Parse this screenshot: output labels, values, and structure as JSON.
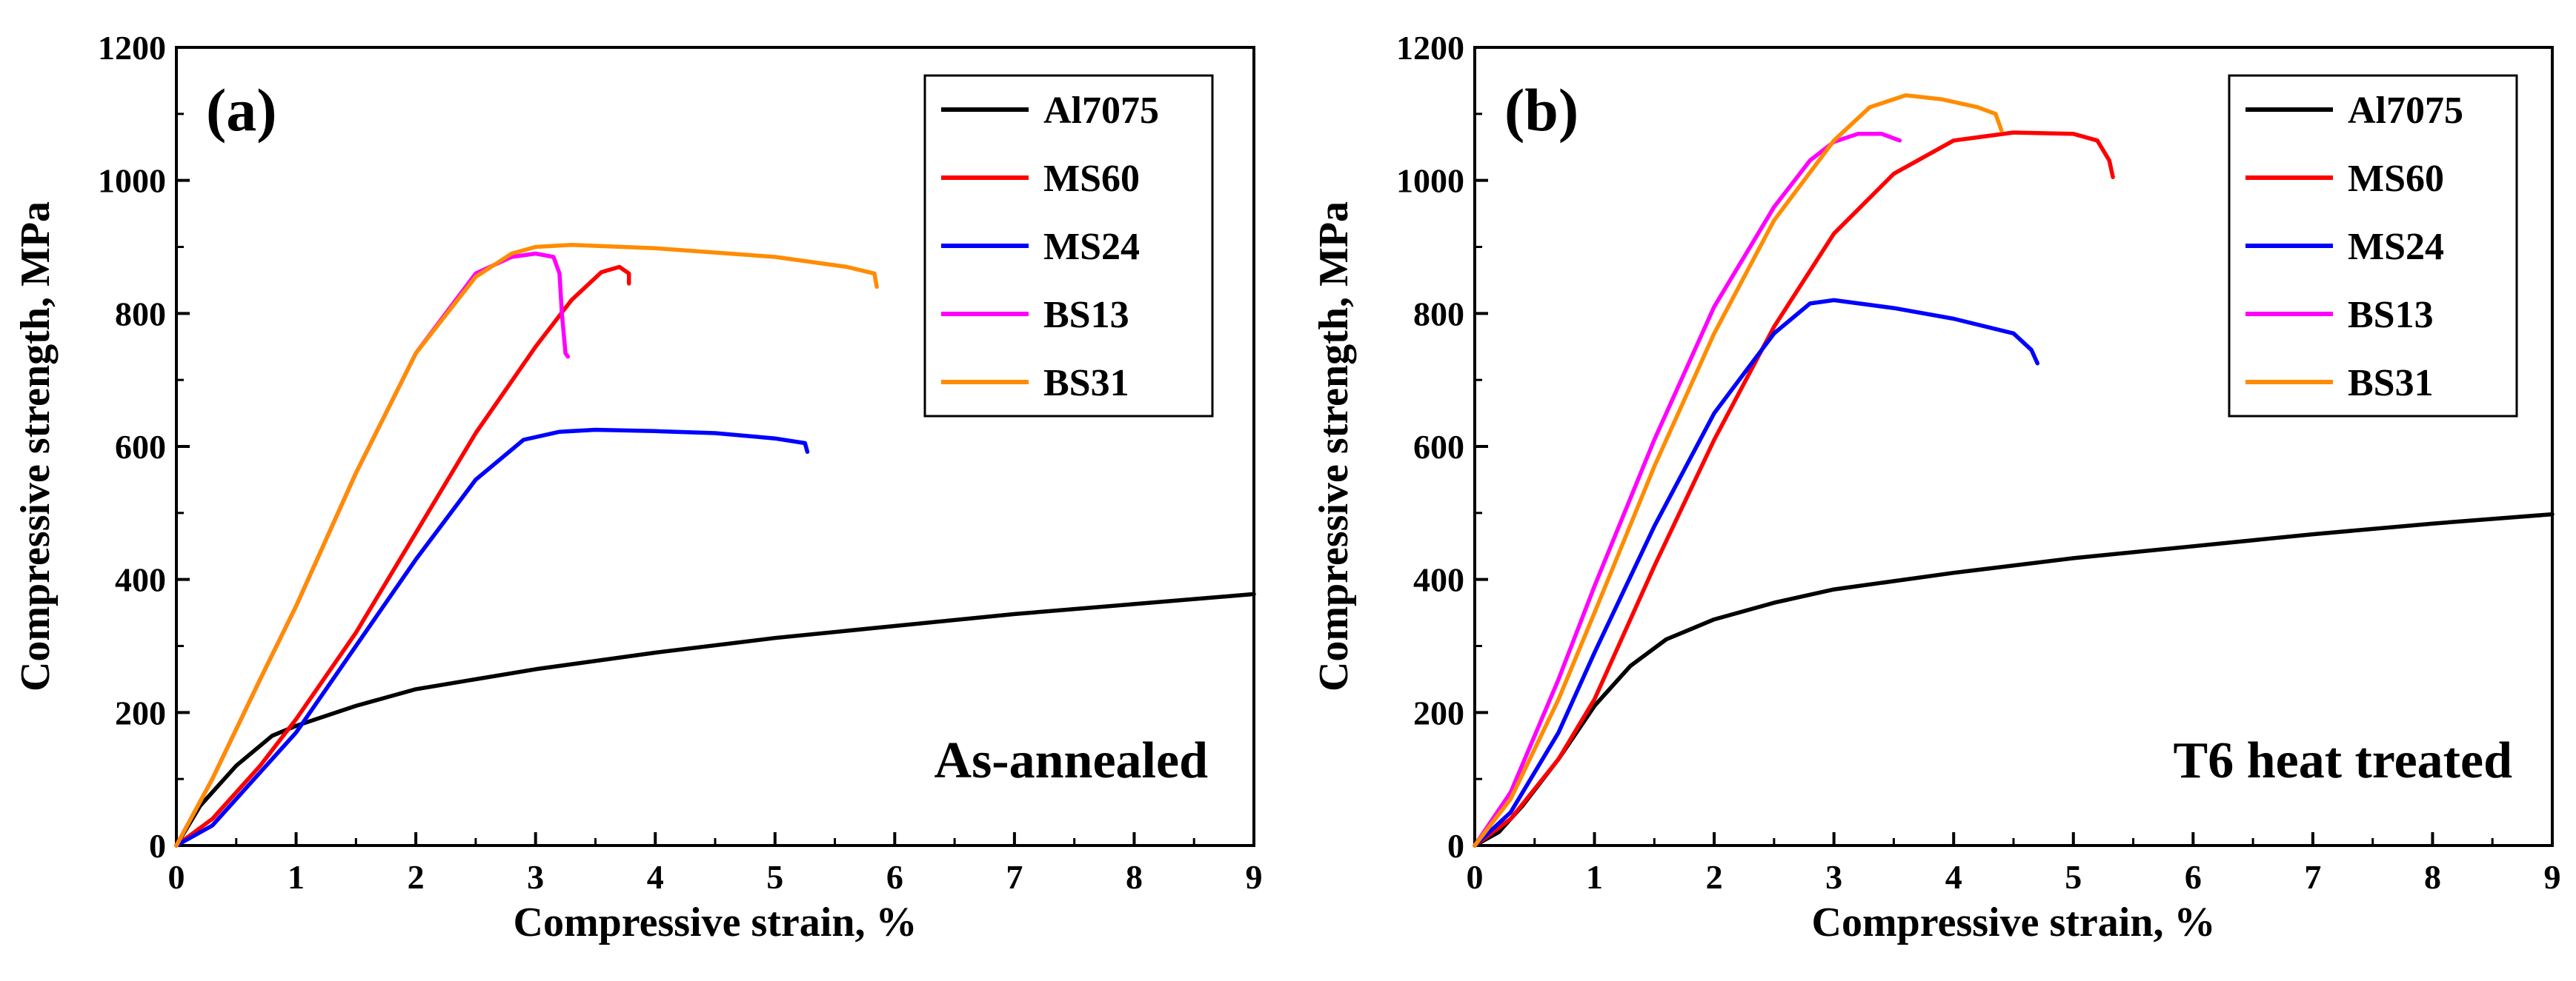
{
  "chart_data": [
    {
      "type": "line",
      "panel_label": "(a)",
      "condition": "As-annealed",
      "xlabel": "Compressive strain, %",
      "ylabel": "Compressive strength, MPa",
      "xlim": [
        0,
        9
      ],
      "ylim": [
        0,
        1200
      ],
      "xticks": [
        0,
        1,
        2,
        3,
        4,
        5,
        6,
        7,
        8,
        9
      ],
      "yticks": [
        0,
        200,
        400,
        600,
        800,
        1000,
        1200
      ],
      "legend_position": "top-right",
      "series": [
        {
          "name": "Al7075",
          "color": "#000000",
          "x": [
            0,
            0.2,
            0.5,
            0.8,
            1.0,
            1.5,
            2,
            3,
            4,
            5,
            6,
            7,
            8,
            9
          ],
          "y": [
            0,
            60,
            120,
            165,
            180,
            210,
            235,
            265,
            290,
            312,
            330,
            348,
            363,
            378
          ]
        },
        {
          "name": "MS60",
          "color": "#ff0000",
          "x": [
            0,
            0.3,
            0.7,
            1.0,
            1.5,
            2.0,
            2.5,
            3.0,
            3.3,
            3.55,
            3.7,
            3.78,
            3.78
          ],
          "y": [
            0,
            40,
            120,
            190,
            320,
            470,
            620,
            750,
            820,
            862,
            870,
            860,
            845
          ]
        },
        {
          "name": "MS24",
          "color": "#0000ff",
          "x": [
            0,
            0.3,
            0.7,
            1.0,
            1.5,
            2.0,
            2.5,
            2.9,
            3.2,
            3.5,
            4.0,
            4.5,
            5.0,
            5.25,
            5.27
          ],
          "y": [
            0,
            30,
            110,
            170,
            300,
            430,
            550,
            610,
            622,
            625,
            623,
            620,
            612,
            605,
            592
          ]
        },
        {
          "name": "BS13",
          "color": "#ff00ff",
          "x": [
            0,
            0.3,
            0.7,
            1.0,
            1.5,
            2.0,
            2.5,
            2.8,
            3.0,
            3.15,
            3.2,
            3.22,
            3.25,
            3.27
          ],
          "y": [
            0,
            100,
            250,
            360,
            560,
            740,
            860,
            885,
            890,
            885,
            860,
            800,
            740,
            735
          ]
        },
        {
          "name": "BS31",
          "color": "#ff8c00",
          "x": [
            0,
            0.3,
            0.7,
            1.0,
            1.5,
            2.0,
            2.5,
            2.8,
            3.0,
            3.3,
            4.0,
            5.0,
            5.6,
            5.83,
            5.85
          ],
          "y": [
            0,
            100,
            250,
            360,
            560,
            740,
            855,
            890,
            900,
            903,
            898,
            885,
            870,
            860,
            840
          ]
        }
      ]
    },
    {
      "type": "line",
      "panel_label": "(b)",
      "condition": "T6 heat treated",
      "xlabel": "Compressive strain, %",
      "ylabel": "Compressive strength, MPa",
      "xlim": [
        0,
        9
      ],
      "ylim": [
        0,
        1200
      ],
      "xticks": [
        0,
        1,
        2,
        3,
        4,
        5,
        6,
        7,
        8,
        9
      ],
      "yticks": [
        0,
        200,
        400,
        600,
        800,
        1000,
        1200
      ],
      "legend_position": "top-right",
      "series": [
        {
          "name": "Al7075",
          "color": "#000000",
          "x": [
            0,
            0.2,
            0.4,
            0.7,
            1.0,
            1.3,
            1.6,
            2.0,
            2.5,
            3,
            4,
            5,
            6,
            7,
            8,
            9
          ],
          "y": [
            0,
            20,
            60,
            130,
            210,
            270,
            310,
            340,
            365,
            385,
            410,
            432,
            450,
            468,
            484,
            498
          ]
        },
        {
          "name": "MS60",
          "color": "#ff0000",
          "x": [
            0,
            0.3,
            0.7,
            1.0,
            1.5,
            2.0,
            2.5,
            3.0,
            3.5,
            4.0,
            4.5,
            5.0,
            5.2,
            5.3,
            5.33
          ],
          "y": [
            0,
            40,
            130,
            220,
            420,
            610,
            780,
            920,
            1010,
            1060,
            1072,
            1070,
            1060,
            1030,
            1005
          ]
        },
        {
          "name": "MS24",
          "color": "#0000ff",
          "x": [
            0,
            0.3,
            0.7,
            1.0,
            1.5,
            2.0,
            2.5,
            2.8,
            3.0,
            3.5,
            4.0,
            4.5,
            4.65,
            4.7
          ],
          "y": [
            0,
            50,
            170,
            290,
            480,
            650,
            770,
            815,
            820,
            808,
            792,
            770,
            745,
            725
          ]
        },
        {
          "name": "BS13",
          "color": "#ff00ff",
          "x": [
            0,
            0.3,
            0.7,
            1.0,
            1.5,
            2.0,
            2.5,
            2.8,
            3.0,
            3.2,
            3.4,
            3.55
          ],
          "y": [
            0,
            80,
            250,
            390,
            610,
            810,
            960,
            1030,
            1058,
            1070,
            1070,
            1060
          ]
        },
        {
          "name": "BS31",
          "color": "#ff8c00",
          "x": [
            0,
            0.3,
            0.7,
            1.0,
            1.5,
            2.0,
            2.5,
            3.0,
            3.3,
            3.6,
            3.9,
            4.2,
            4.35,
            4.4
          ],
          "y": [
            0,
            70,
            220,
            350,
            570,
            770,
            940,
            1060,
            1110,
            1128,
            1122,
            1110,
            1100,
            1075
          ]
        }
      ]
    }
  ]
}
